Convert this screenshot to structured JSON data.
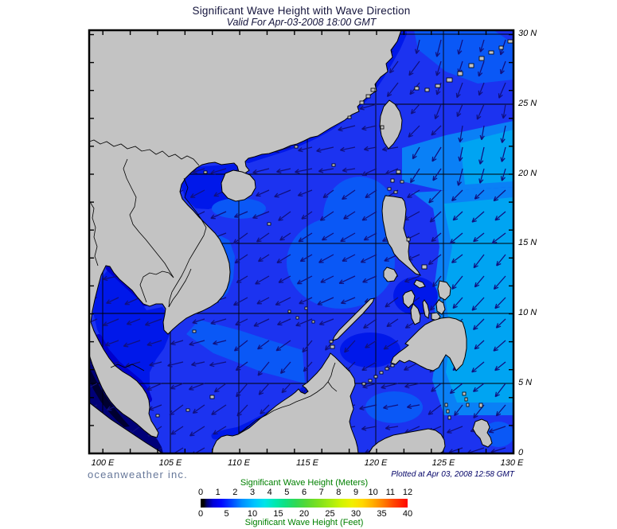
{
  "header": {
    "title": "Significant Wave Height with Wave Direction",
    "subtitle": "Valid For Apr-03-2008 18:00 GMT"
  },
  "map": {
    "lat_labels": [
      "30 N",
      "25 N",
      "20 N",
      "15 N",
      "10 N",
      "5 N",
      "0"
    ],
    "lon_labels": [
      "100 E",
      "105 E",
      "110 E",
      "115 E",
      "120 E",
      "125 E",
      "130 E"
    ]
  },
  "footer": {
    "brand": "oceanweather inc.",
    "plotted": "Plotted at Apr 03, 2008 12:58 GMT"
  },
  "legend": {
    "meters_label": "Significant Wave Height (Meters)",
    "meters_ticks": [
      "0",
      "1",
      "2",
      "3",
      "4",
      "5",
      "6",
      "7",
      "8",
      "9",
      "10",
      "11",
      "12"
    ],
    "feet_label": "Significant Wave Height (Feet)",
    "feet_ticks": [
      "0",
      "5",
      "10",
      "15",
      "20",
      "25",
      "30",
      "35",
      "40"
    ],
    "label_color": "#008000",
    "colorbar_stops": [
      [
        "0%",
        "#000000"
      ],
      [
        "1.5%",
        "#000000"
      ],
      [
        "3%",
        "#00006e"
      ],
      [
        "6%",
        "#0000d8"
      ],
      [
        "10%",
        "#0008ff"
      ],
      [
        "15%",
        "#0048ff"
      ],
      [
        "20%",
        "#0090ff"
      ],
      [
        "26%",
        "#00c4ff"
      ],
      [
        "31%",
        "#00e4e8"
      ],
      [
        "36%",
        "#00e8b0"
      ],
      [
        "41%",
        "#10e080"
      ],
      [
        "46%",
        "#30d855"
      ],
      [
        "51%",
        "#55d835"
      ],
      [
        "57%",
        "#7ee01e"
      ],
      [
        "63%",
        "#a8ec10"
      ],
      [
        "68%",
        "#d0f400"
      ],
      [
        "73%",
        "#f0f000"
      ],
      [
        "78%",
        "#ffd800"
      ],
      [
        "83%",
        "#ffb000"
      ],
      [
        "88%",
        "#ff8000"
      ],
      [
        "93%",
        "#ff4800"
      ],
      [
        "100%",
        "#ff0800"
      ]
    ]
  },
  "colors": {
    "land": "#c3c3c3",
    "coast": "#000000",
    "grid": "#000000",
    "arrow": "#10107e",
    "title_text": "#14143c",
    "brand_text": "#667799",
    "plotted_text": "#000066",
    "ocean": {
      "c0": "#000030",
      "c1": "#000078",
      "c2": "#0000cc",
      "c3": "#0018ea",
      "c4": "#1c33f0",
      "c5": "#0a58f6",
      "c6": "#0a80f6",
      "c7": "#00a4f2"
    }
  },
  "chart_data": {
    "type": "heatmap",
    "title": "Significant Wave Height with Wave Direction",
    "valid_time": "Apr-03-2008 18:00 GMT",
    "plotted_time": "Apr 03, 2008 12:58 GMT",
    "units": [
      "meters",
      "feet"
    ],
    "scale_meters": [
      0,
      1,
      2,
      3,
      4,
      5,
      6,
      7,
      8,
      9,
      10,
      11,
      12
    ],
    "scale_feet": [
      0,
      5,
      10,
      15,
      20,
      25,
      30,
      35,
      40
    ],
    "lon_range_deg_e": [
      99,
      130
    ],
    "lat_range_deg_n": [
      0,
      30
    ],
    "grid_interval_deg": 5,
    "observed_values_m": {
      "south_china_sea_central": 1.5,
      "east_south_china_sea": 2,
      "pacific_east_of_philippines": 3,
      "gulf_of_tonkin": 1,
      "gulf_of_thailand": 1,
      "malacca_strait": 0.25,
      "celebes_sea": 1.5
    },
    "wave_direction": "generally from northeast toward southwest"
  }
}
